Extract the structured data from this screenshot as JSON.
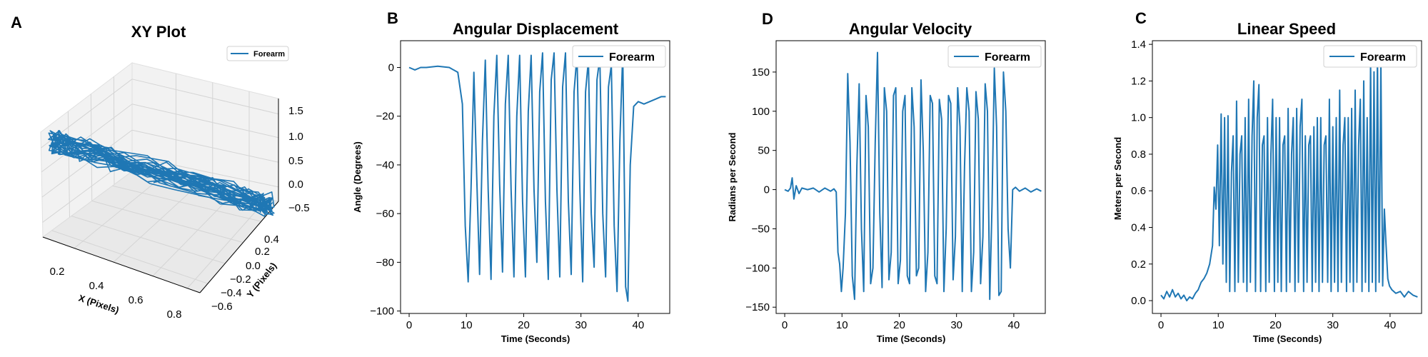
{
  "figure": {
    "line_color": "#1f77b4",
    "panel_letters": [
      "A",
      "B",
      "D",
      "C"
    ]
  },
  "chart_data": [
    {
      "type": "line3d",
      "panel": "A",
      "title": "XY Plot",
      "xlabel": "X (Pixels)",
      "ylabel": "Y (Pixels)",
      "zlabel": "",
      "xticks": [
        "0.2",
        "0.4",
        "0.6",
        "0.8"
      ],
      "yticks": [
        "−0.6",
        "−0.4",
        "−0.2",
        "0.0",
        "0.2",
        "0.4"
      ],
      "zticks": [
        "1.5",
        "1.0",
        "0.5",
        "0.0",
        "−0.5"
      ],
      "xlim": [
        0.1,
        0.9
      ],
      "ylim": [
        -0.6,
        0.45
      ],
      "zlim": [
        -0.6,
        1.6
      ],
      "series": [
        {
          "name": "Forearm"
        }
      ],
      "legend": "top-right",
      "grid": true
    },
    {
      "type": "line",
      "panel": "B",
      "title": "Angular Displacement",
      "xlabel": "Time (Seconds)",
      "ylabel": "Angle (Degrees)",
      "xlim": [
        -1.5,
        45.5
      ],
      "ylim": [
        -101,
        11
      ],
      "xticks": [
        0,
        10,
        20,
        30,
        40
      ],
      "yticks": [
        0,
        -20,
        -40,
        -60,
        -80,
        -100
      ],
      "ytick_labels": [
        "0",
        "−20",
        "−40",
        "−60",
        "−80",
        "−100"
      ],
      "legend": "top-right",
      "grid": false,
      "series": [
        {
          "name": "Forearm",
          "x": [
            0,
            1,
            2,
            3,
            5,
            7,
            8.5,
            9.3,
            9.8,
            10.3,
            10.8,
            11.3,
            11.8,
            12.3,
            12.8,
            13.3,
            13.8,
            14.3,
            14.8,
            15.3,
            15.8,
            16.3,
            16.8,
            17.3,
            17.8,
            18.3,
            18.8,
            19.3,
            19.8,
            20.3,
            20.8,
            21.3,
            21.8,
            22.3,
            22.8,
            23.3,
            23.8,
            24.3,
            24.8,
            25.3,
            25.8,
            26.3,
            26.8,
            27.3,
            27.8,
            28.3,
            28.8,
            29.3,
            29.8,
            30.3,
            30.8,
            31.3,
            31.8,
            32.3,
            32.8,
            33.3,
            33.8,
            34.3,
            34.8,
            35.3,
            35.8,
            36.3,
            36.8,
            37.3,
            37.8,
            38.2,
            38.6,
            39.2,
            40,
            41,
            42,
            43,
            44,
            44.8
          ],
          "y": [
            0,
            -1,
            0,
            0,
            0.5,
            0,
            -2,
            -15,
            -65,
            -88,
            -50,
            -2,
            -45,
            -85,
            -30,
            3,
            -50,
            -87,
            -20,
            5,
            -48,
            -84,
            -15,
            5,
            -50,
            -86,
            -20,
            5,
            -55,
            -86,
            -18,
            5,
            -50,
            -80,
            -10,
            6,
            -55,
            -87,
            -5,
            6,
            -50,
            -86,
            -8,
            6,
            -55,
            -85,
            -10,
            5,
            -50,
            -88,
            -10,
            3,
            -60,
            -82,
            -5,
            4,
            -60,
            -86,
            -8,
            1,
            -65,
            -92,
            -30,
            6,
            -90,
            -96,
            -40,
            -16,
            -14,
            -15,
            -14,
            -13,
            -12,
            -12
          ]
        }
      ]
    },
    {
      "type": "line",
      "panel": "D",
      "title": "Angular Velocity",
      "xlabel": "Time (Seconds)",
      "ylabel": "Radians per Second",
      "xlim": [
        -1.5,
        45.5
      ],
      "ylim": [
        -158,
        190
      ],
      "xticks": [
        0,
        10,
        20,
        30,
        40
      ],
      "yticks": [
        150,
        100,
        50,
        0,
        -50,
        -100,
        -150
      ],
      "ytick_labels": [
        "150",
        "100",
        "50",
        "0",
        "−50",
        "−100",
        "−150"
      ],
      "legend": "top-right",
      "grid": false,
      "series": [
        {
          "name": "Forearm",
          "x": [
            0,
            0.6,
            1.0,
            1.3,
            1.6,
            2.0,
            2.5,
            3.0,
            4,
            5,
            6,
            7,
            8,
            8.6,
            9.0,
            9.3,
            9.6,
            9.9,
            10.2,
            10.6,
            11.0,
            11.4,
            11.8,
            12.2,
            12.6,
            13.0,
            13.4,
            13.8,
            14.2,
            14.6,
            15.0,
            15.4,
            15.8,
            16.2,
            16.6,
            17.0,
            17.4,
            17.8,
            18.2,
            18.6,
            19.0,
            19.4,
            19.8,
            20.2,
            20.6,
            21.0,
            21.4,
            21.8,
            22.2,
            22.6,
            23.0,
            23.4,
            23.8,
            24.2,
            24.6,
            25.0,
            25.4,
            25.8,
            26.2,
            26.6,
            27.0,
            27.4,
            27.8,
            28.2,
            28.6,
            29.0,
            29.4,
            29.8,
            30.2,
            30.6,
            31.0,
            31.4,
            31.8,
            32.2,
            32.6,
            33.0,
            33.4,
            33.8,
            34.2,
            34.6,
            35.0,
            35.4,
            35.8,
            36.2,
            36.6,
            37.0,
            37.4,
            37.8,
            38.2,
            38.6,
            39.0,
            39.4,
            39.8,
            40.3,
            41,
            42,
            43,
            44,
            44.8
          ],
          "y": [
            0,
            -2,
            2,
            15,
            -12,
            5,
            -5,
            2,
            0,
            2,
            -3,
            2,
            -2,
            1,
            -3,
            -80,
            -95,
            -130,
            -100,
            -30,
            148,
            60,
            -110,
            -140,
            30,
            135,
            -50,
            -130,
            120,
            80,
            -120,
            -100,
            60,
            175,
            -30,
            -125,
            130,
            100,
            -115,
            -80,
            120,
            130,
            -120,
            -90,
            100,
            120,
            -110,
            -120,
            130,
            80,
            -110,
            -100,
            140,
            50,
            -130,
            -80,
            120,
            110,
            -110,
            -120,
            115,
            90,
            -130,
            -50,
            120,
            110,
            -115,
            -60,
            130,
            80,
            -130,
            30,
            130,
            100,
            -130,
            -80,
            125,
            90,
            -120,
            -60,
            135,
            100,
            -140,
            -20,
            155,
            80,
            -135,
            -130,
            150,
            100,
            -50,
            -100,
            0,
            3,
            -2,
            2,
            -3,
            1,
            -2
          ]
        }
      ]
    },
    {
      "type": "line",
      "panel": "C",
      "title": "Linear Speed",
      "xlabel": "Time (Seconds)",
      "ylabel": "Meters per Second",
      "xlim": [
        -1.5,
        45.5
      ],
      "ylim": [
        -0.07,
        1.42
      ],
      "xticks": [
        0,
        10,
        20,
        30,
        40
      ],
      "yticks": [
        0,
        0.2,
        0.4,
        0.6,
        0.8,
        1.0,
        1.2,
        1.4
      ],
      "ytick_labels": [
        "0.0",
        "0.2",
        "0.4",
        "0.6",
        "0.8",
        "1.0",
        "1.2",
        "1.4"
      ],
      "legend": "top-right",
      "grid": false,
      "series": [
        {
          "name": "Forearm",
          "x": [
            0,
            0.5,
            1,
            1.5,
            2,
            2.5,
            3,
            3.5,
            4,
            4.5,
            5,
            5.5,
            6,
            6.5,
            7,
            7.5,
            8,
            8.5,
            9,
            9.3,
            9.6,
            9.9,
            10.2,
            10.5,
            10.8,
            11.1,
            11.4,
            11.7,
            12.0,
            12.3,
            12.6,
            12.9,
            13.2,
            13.5,
            13.8,
            14.1,
            14.4,
            14.7,
            15.0,
            15.3,
            15.6,
            15.9,
            16.2,
            16.5,
            16.8,
            17.1,
            17.4,
            17.7,
            18.0,
            18.3,
            18.6,
            18.9,
            19.2,
            19.5,
            19.8,
            20.1,
            20.4,
            20.7,
            21.0,
            21.3,
            21.6,
            21.9,
            22.2,
            22.5,
            22.8,
            23.1,
            23.4,
            23.7,
            24.0,
            24.3,
            24.6,
            24.9,
            25.2,
            25.5,
            25.8,
            26.1,
            26.4,
            26.7,
            27.0,
            27.3,
            27.6,
            27.9,
            28.2,
            28.5,
            28.8,
            29.1,
            29.4,
            29.7,
            30.0,
            30.3,
            30.6,
            30.9,
            31.2,
            31.5,
            31.8,
            32.1,
            32.4,
            32.7,
            33.0,
            33.3,
            33.6,
            33.9,
            34.2,
            34.5,
            34.8,
            35.1,
            35.4,
            35.7,
            36.0,
            36.3,
            36.6,
            36.9,
            37.2,
            37.5,
            37.8,
            38.1,
            38.4,
            38.7,
            39.0,
            39.3,
            39.6,
            39.9,
            40.3,
            41,
            41.8,
            42.5,
            43.2,
            44,
            44.8
          ],
          "y": [
            0.03,
            0.01,
            0.05,
            0.02,
            0.06,
            0.02,
            0.04,
            0.01,
            0.03,
            0.0,
            0.02,
            0.01,
            0.04,
            0.06,
            0.1,
            0.12,
            0.15,
            0.2,
            0.3,
            0.62,
            0.5,
            0.85,
            0.3,
            1.02,
            0.2,
            1.0,
            0.1,
            1.01,
            0.05,
            0.7,
            0.9,
            0.05,
            1.09,
            0.1,
            0.8,
            0.9,
            0.1,
            1.0,
            0.05,
            1.1,
            0.1,
            0.9,
            1.2,
            0.05,
            1.0,
            1.18,
            0.05,
            0.85,
            0.9,
            0.05,
            1.0,
            0.1,
            0.8,
            1.1,
            0.05,
            1.0,
            0.1,
            1.0,
            0.05,
            0.85,
            0.9,
            0.05,
            1.05,
            0.1,
            0.8,
            1.0,
            0.05,
            1.05,
            0.1,
            0.95,
            1.1,
            0.05,
            0.9,
            0.1,
            0.85,
            0.9,
            0.05,
            0.95,
            0.1,
            1.0,
            0.05,
            1.0,
            0.1,
            0.85,
            0.9,
            0.1,
            1.1,
            0.05,
            0.95,
            0.1,
            1.0,
            0.05,
            1.15,
            0.1,
            0.85,
            1.0,
            0.05,
            1.0,
            0.1,
            1.05,
            0.05,
            1.15,
            0.1,
            0.85,
            1.1,
            0.05,
            1.2,
            0.1,
            1.0,
            0.05,
            1.3,
            0.1,
            1.25,
            0.05,
            1.35,
            0.1,
            1.3,
            0.08,
            0.5,
            0.3,
            0.12,
            0.08,
            0.06,
            0.04,
            0.05,
            0.02,
            0.05,
            0.03,
            0.02
          ]
        }
      ]
    }
  ]
}
